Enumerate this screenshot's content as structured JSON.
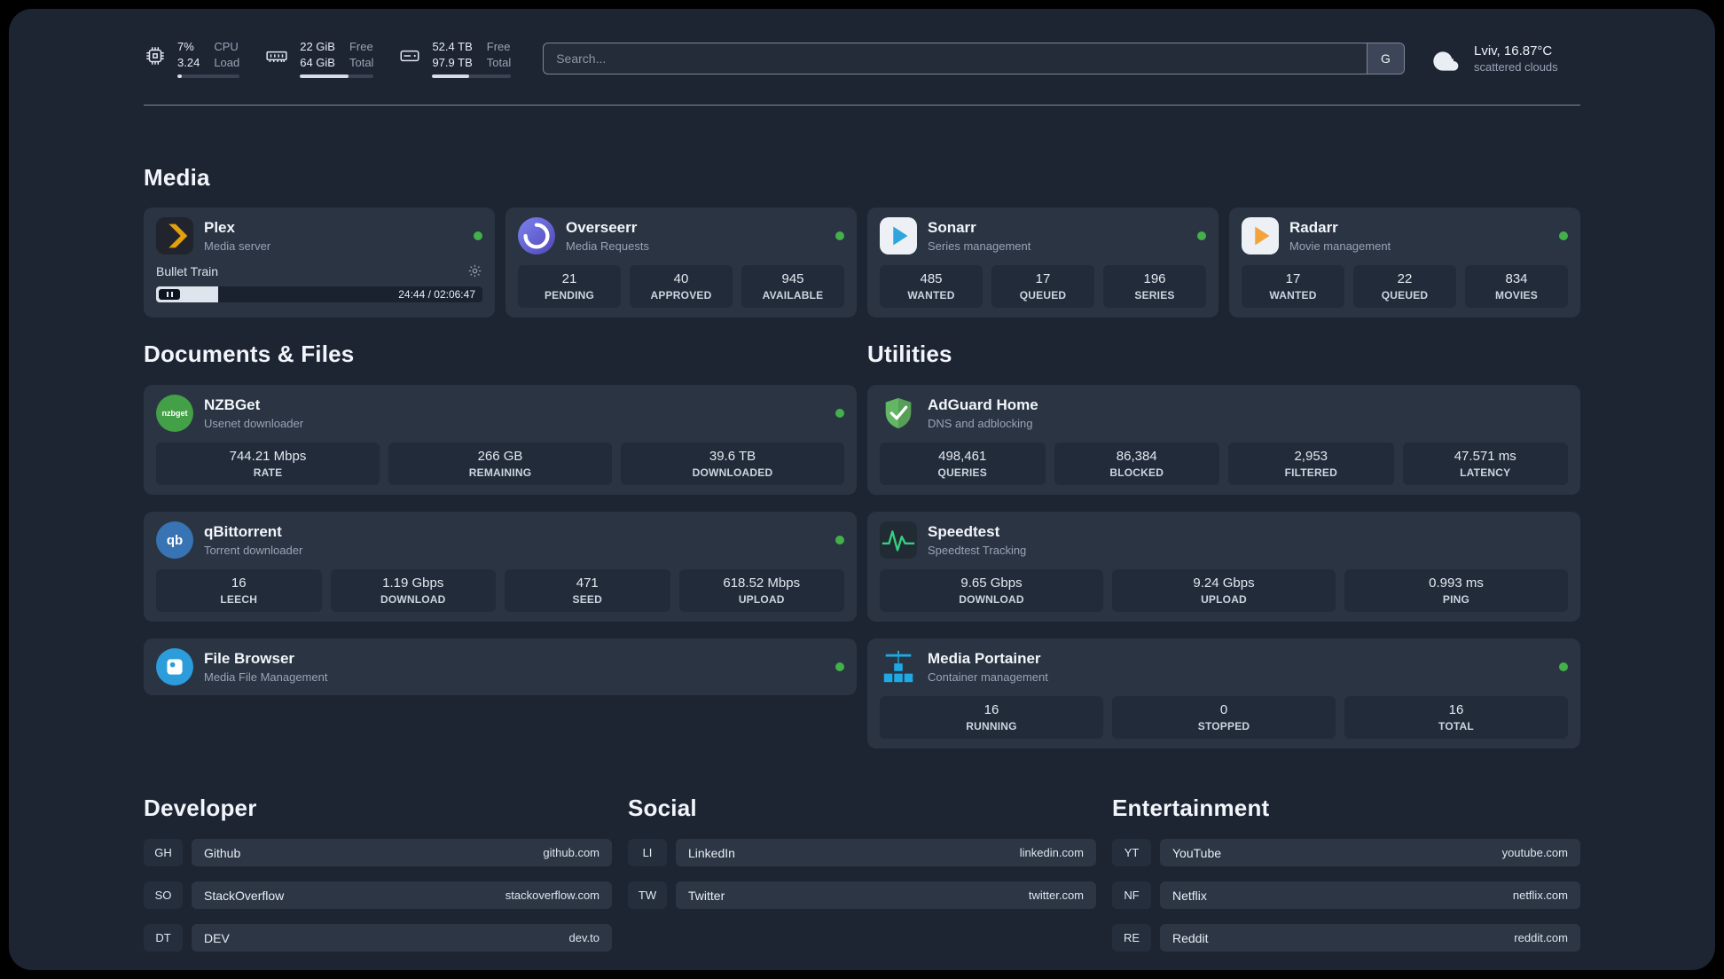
{
  "topbar": {
    "cpu": {
      "icon": "cpu-chip-icon",
      "value_top": "7%",
      "value_bottom": "3.24",
      "label_top": "CPU",
      "label_bottom": "Load",
      "progress": 7
    },
    "memory": {
      "icon": "memory-icon",
      "value_top": "22 GiB",
      "value_bottom": "64 GiB",
      "label_top": "Free",
      "label_bottom": "Total",
      "progress": 66
    },
    "storage": {
      "icon": "storage-icon",
      "value_top": "52.4 TB",
      "value_bottom": "97.9 TB",
      "label_top": "Free",
      "label_bottom": "Total",
      "progress": 47
    },
    "search": {
      "placeholder": "Search...",
      "engine_button": "G"
    },
    "weather": {
      "icon": "cloud-icon",
      "location": "Lviv, 16.87°C",
      "condition": "scattered clouds"
    }
  },
  "sections": {
    "media": {
      "title": "Media",
      "cards": [
        {
          "name": "Plex",
          "subtitle": "Media server",
          "icon": "plex-icon",
          "status": "online",
          "player": {
            "track": "Bullet Train",
            "time": "24:44 / 02:06:47",
            "progress": 19
          }
        },
        {
          "name": "Overseerr",
          "subtitle": "Media Requests",
          "icon": "overseerr-icon",
          "status": "online",
          "stats": [
            {
              "value": "21",
              "label": "PENDING"
            },
            {
              "value": "40",
              "label": "APPROVED"
            },
            {
              "value": "945",
              "label": "AVAILABLE"
            }
          ]
        },
        {
          "name": "Sonarr",
          "subtitle": "Series management",
          "icon": "sonarr-icon",
          "status": "online",
          "stats": [
            {
              "value": "485",
              "label": "WANTED"
            },
            {
              "value": "17",
              "label": "QUEUED"
            },
            {
              "value": "196",
              "label": "SERIES"
            }
          ]
        },
        {
          "name": "Radarr",
          "subtitle": "Movie management",
          "icon": "radarr-icon",
          "status": "online",
          "stats": [
            {
              "value": "17",
              "label": "WANTED"
            },
            {
              "value": "22",
              "label": "QUEUED"
            },
            {
              "value": "834",
              "label": "MOVIES"
            }
          ]
        }
      ]
    },
    "documents": {
      "title": "Documents & Files",
      "cards": [
        {
          "name": "NZBGet",
          "subtitle": "Usenet downloader",
          "icon": "nzbget-icon",
          "status": "online",
          "stats": [
            {
              "value": "744.21 Mbps",
              "label": "RATE"
            },
            {
              "value": "266 GB",
              "label": "REMAINING"
            },
            {
              "value": "39.6 TB",
              "label": "DOWNLOADED"
            }
          ]
        },
        {
          "name": "qBittorrent",
          "subtitle": "Torrent downloader",
          "icon": "qbittorrent-icon",
          "status": "online",
          "stats": [
            {
              "value": "16",
              "label": "LEECH"
            },
            {
              "value": "1.19 Gbps",
              "label": "DOWNLOAD"
            },
            {
              "value": "471",
              "label": "SEED"
            },
            {
              "value": "618.52 Mbps",
              "label": "UPLOAD"
            }
          ]
        },
        {
          "name": "File Browser",
          "subtitle": "Media File Management",
          "icon": "filebrowser-icon",
          "status": "online"
        }
      ]
    },
    "utilities": {
      "title": "Utilities",
      "cards": [
        {
          "name": "AdGuard Home",
          "subtitle": "DNS and adblocking",
          "icon": "adguard-icon",
          "stats": [
            {
              "value": "498,461",
              "label": "QUERIES"
            },
            {
              "value": "86,384",
              "label": "BLOCKED"
            },
            {
              "value": "2,953",
              "label": "FILTERED"
            },
            {
              "value": "47.571 ms",
              "label": "LATENCY"
            }
          ]
        },
        {
          "name": "Speedtest",
          "subtitle": "Speedtest Tracking",
          "icon": "speedtest-icon",
          "stats": [
            {
              "value": "9.65 Gbps",
              "label": "DOWNLOAD"
            },
            {
              "value": "9.24 Gbps",
              "label": "UPLOAD"
            },
            {
              "value": "0.993 ms",
              "label": "PING"
            }
          ]
        },
        {
          "name": "Media Portainer",
          "subtitle": "Container management",
          "icon": "portainer-icon",
          "status": "online",
          "stats": [
            {
              "value": "16",
              "label": "RUNNING"
            },
            {
              "value": "0",
              "label": "STOPPED"
            },
            {
              "value": "16",
              "label": "TOTAL"
            }
          ]
        }
      ]
    }
  },
  "bookmarks": [
    {
      "title": "Developer",
      "items": [
        {
          "abbr": "GH",
          "name": "Github",
          "url": "github.com"
        },
        {
          "abbr": "SO",
          "name": "StackOverflow",
          "url": "stackoverflow.com"
        },
        {
          "abbr": "DT",
          "name": "DEV",
          "url": "dev.to"
        }
      ]
    },
    {
      "title": "Social",
      "items": [
        {
          "abbr": "LI",
          "name": "LinkedIn",
          "url": "linkedin.com"
        },
        {
          "abbr": "TW",
          "name": "Twitter",
          "url": "twitter.com"
        }
      ]
    },
    {
      "title": "Entertainment",
      "items": [
        {
          "abbr": "YT",
          "name": "YouTube",
          "url": "youtube.com"
        },
        {
          "abbr": "NF",
          "name": "Netflix",
          "url": "netflix.com"
        },
        {
          "abbr": "RE",
          "name": "Reddit",
          "url": "reddit.com"
        }
      ]
    }
  ],
  "colors": {
    "status_online": "#43b04a",
    "plex_gold": "#e5a00d",
    "overseerr_purple": "#6156c9",
    "sonarr_blue": "#2ea6dd",
    "radarr_orange": "#f2a33c",
    "nzbget_green": "#43a047",
    "qbittorrent_blue": "#3873b3",
    "filebrowser_blue": "#2d9cdb",
    "adguard_green": "#63b663",
    "speedtest_green": "#35d07f",
    "portainer_blue": "#1fa9e4"
  }
}
